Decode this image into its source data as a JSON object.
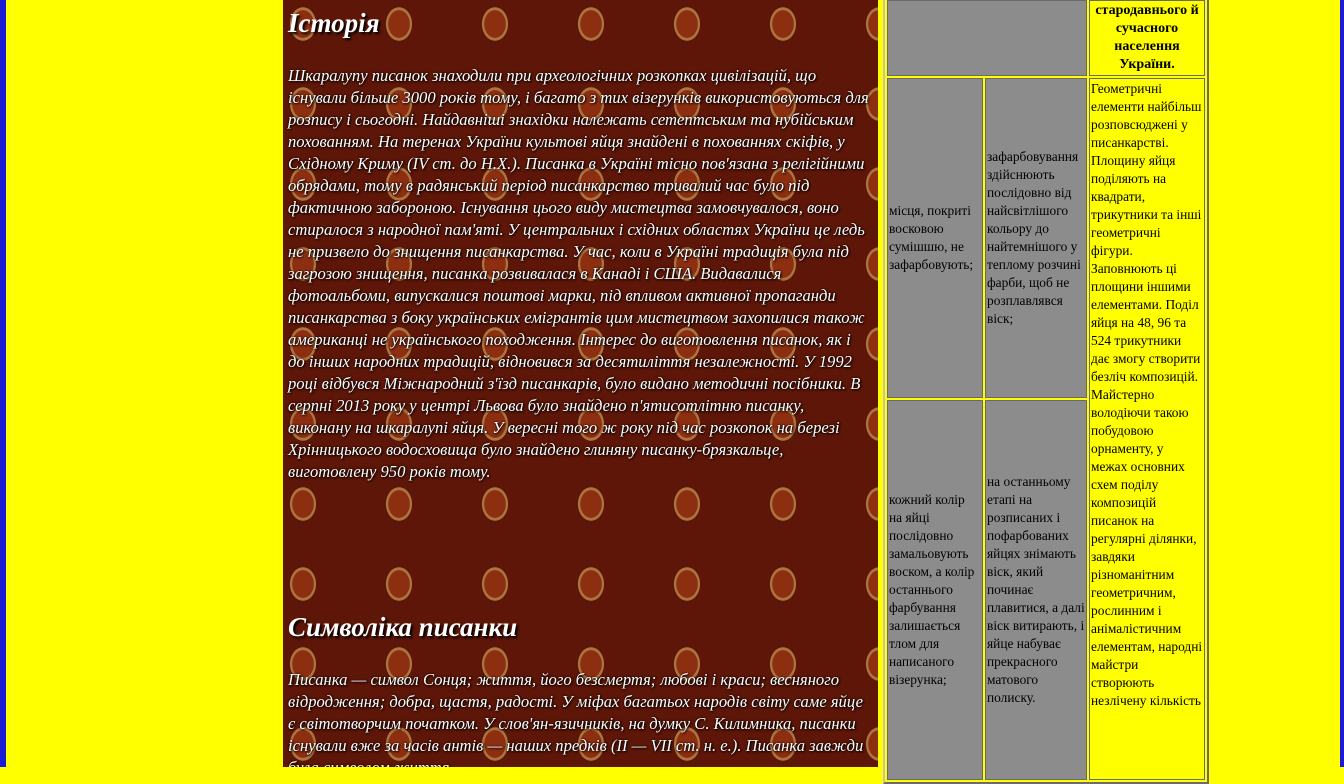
{
  "left_edge_color": "#1b1bd6",
  "page_background": "#ffff00",
  "panel": {
    "history_heading": "Історія",
    "history_text": "Шкаралупу писанок знаходили при археологічних розкопках цивілізацій, що існували більше 3000 років тому, і багато з тих візерунків використовуються для розпису і сьогодні. Найдавніші знахідки належать сетептським та нубійським похованням. На теренах України культові яйця знайдені в похованнях скіфів, у Східному Криму (IV ст. до Н.Х.). Писанка в Україні тісно пов'язана з релігійними обрядами, тому в радянський період писанкарство тривалий час було під фактичною забороною. Існування цього виду мистецтва замовчувалося, воно стиралося з народної пам'яті. У центральних і східних областях України це ледь не призвело до знищення писанкарства. У час, коли в Україні традиція була під загрозою знищення, писанка розвивалася в Канаді і США. Видавалися фотоальбоми, випускалися поштові марки, під впливом активної пропаганди писанкарства з боку українських емігрантів цим мистецтвом захопилися також американці не українського походження. Інтерес до виготовлення писанок, як і до інших народних традицій, відновився за десятиліття незалежності. У 1992 році відбувся Міжнародний з'їзд писанкарів, було видано методичні посібники. В серпні 2013 року у центрі Львова було знайдено п'ятисотлітню писанку, виконану на шкаралупі яйця. У вересні того ж року під час розкопок на березі Хрінницького водосховища було знайдено глиняну писанку-брязкальце, виготовлену 950 років тому.",
    "symbol_heading": "Символіка писанки",
    "symbol_text": "Писанка — символ Сонця; життя, його безсмертя; любові і краси; весняного відродження; добра, щастя, радості. У міфах багатьох народів світу саме яйце є світотворчим початком. У слов'ян-язичників, на думку С. Килимника, писанки існували вже за часів антів — наших предків (II — VII ст. н. е.). Писанка завжди була символом життя"
  },
  "table": {
    "row0": {
      "col1": "",
      "col2": "",
      "col3": "стародавнього й сучасного населення України."
    },
    "row1": {
      "col1": "місця, покриті восковою сумішшю, не зафарбовують;",
      "col2": "зафарбовування здійснюють послідовно від найсвітлішого кольору до найтемнішого у теплому розчині фарби, щоб не розплавлявся віск;",
      "col3": "Геометричні елементи найбільш розповсюджені у писанкарстві. Площину яйця поділяють на квадрати, трикутники та інші геометричні фігури. Заповнюють ці площини іншими елементами. Поділ яйця на 48, 96 та 524 трикутники дає змогу створити безліч композицій. Майстерно володіючи такою побудовою орнаменту, у межах основних схем поділу композицій писанок на регулярні ділянки, завдяки різноманітним геометричним, рослинним і анімалістичним елементам, народні майстри створюють незлічену кількість"
    },
    "row2": {
      "col1": "кожний колір на яйці послідовно замальовують воском, а колір останнього фарбування залишається тлом для написаного візерунка;",
      "col2": "на останньому етапі на розписаних і пофарбованих яйцях знімають віск, який починає плавитися, а далі віск витирають, і яйце набуває прекрасного матового полиску."
    }
  }
}
